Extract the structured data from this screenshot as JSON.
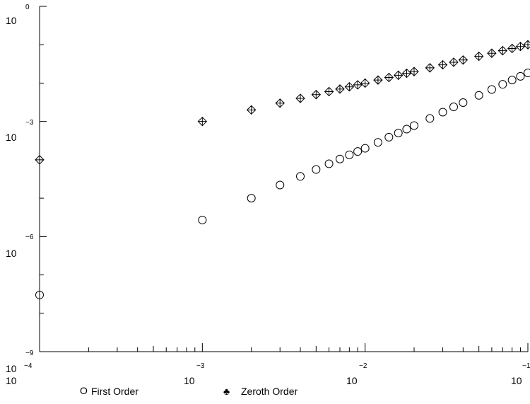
{
  "chart_data": {
    "type": "scatter",
    "xscale": "log",
    "yscale": "log",
    "xlim": [
      0.0001,
      0.1
    ],
    "ylim": [
      1e-09,
      1
    ],
    "x_ticks": [
      {
        "base": "10",
        "exp": "−4"
      },
      {
        "base": "10",
        "exp": "−3"
      },
      {
        "base": "10",
        "exp": "−2"
      },
      {
        "base": "10",
        "exp": "−1"
      }
    ],
    "y_ticks": [
      {
        "base": "10",
        "exp": "0"
      },
      {
        "base": "10",
        "exp": "−3"
      },
      {
        "base": "10",
        "exp": "−6"
      },
      {
        "base": "10",
        "exp": "−9"
      }
    ],
    "grid": false,
    "legend_position": "bottom",
    "series": [
      {
        "name": "First Order",
        "marker": "circle",
        "points": [
          [
            0.0001,
            3e-08
          ],
          [
            0.001,
            2.7e-06
          ],
          [
            0.002,
            1e-05
          ],
          [
            0.003,
            2.2e-05
          ],
          [
            0.004,
            3.7e-05
          ],
          [
            0.005,
            5.6e-05
          ],
          [
            0.006,
            7.9e-05
          ],
          [
            0.007,
            0.000105
          ],
          [
            0.008,
            0.000135
          ],
          [
            0.009,
            0.000165
          ],
          [
            0.01,
            0.0002
          ],
          [
            0.012,
            0.000285
          ],
          [
            0.014,
            0.00039
          ],
          [
            0.016,
            0.0005
          ],
          [
            0.018,
            0.00063
          ],
          [
            0.02,
            0.00078
          ],
          [
            0.025,
            0.0012
          ],
          [
            0.03,
            0.00175
          ],
          [
            0.035,
            0.0024
          ],
          [
            0.04,
            0.0031
          ],
          [
            0.05,
            0.0048
          ],
          [
            0.06,
            0.0068
          ],
          [
            0.07,
            0.0093
          ],
          [
            0.08,
            0.012
          ],
          [
            0.09,
            0.015
          ],
          [
            0.1,
            0.0185
          ]
        ]
      },
      {
        "name": "Zeroth Order",
        "marker": "diamond-cross",
        "points": [
          [
            0.0001,
            0.0001
          ],
          [
            0.001,
            0.001
          ],
          [
            0.002,
            0.002
          ],
          [
            0.003,
            0.003
          ],
          [
            0.004,
            0.004
          ],
          [
            0.005,
            0.005
          ],
          [
            0.006,
            0.006
          ],
          [
            0.007,
            0.007
          ],
          [
            0.008,
            0.008
          ],
          [
            0.009,
            0.009
          ],
          [
            0.01,
            0.01
          ],
          [
            0.012,
            0.012
          ],
          [
            0.014,
            0.014
          ],
          [
            0.016,
            0.016
          ],
          [
            0.018,
            0.018
          ],
          [
            0.02,
            0.02
          ],
          [
            0.025,
            0.025
          ],
          [
            0.03,
            0.03
          ],
          [
            0.035,
            0.035
          ],
          [
            0.04,
            0.04
          ],
          [
            0.05,
            0.05
          ],
          [
            0.06,
            0.06
          ],
          [
            0.07,
            0.07
          ],
          [
            0.08,
            0.08
          ],
          [
            0.09,
            0.09
          ],
          [
            0.1,
            0.1
          ]
        ]
      }
    ],
    "legend": [
      {
        "symbol": "O",
        "label": "First Order"
      },
      {
        "symbol": "♣",
        "label": "Zeroth Order"
      }
    ]
  }
}
